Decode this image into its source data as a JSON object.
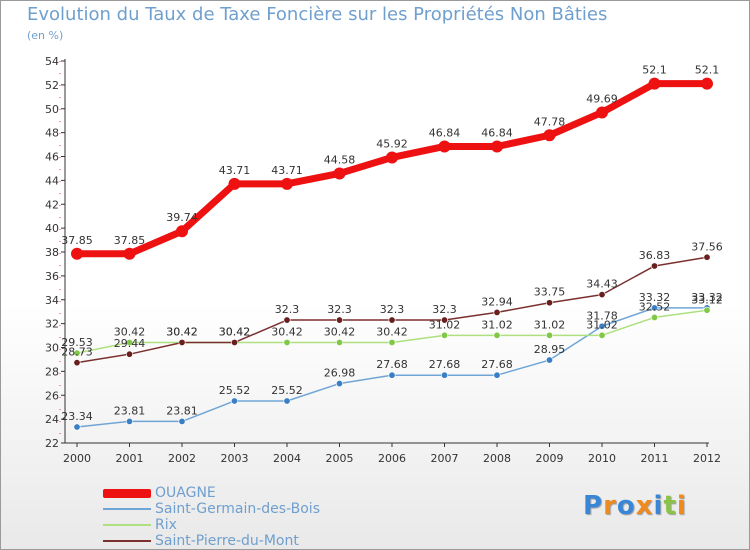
{
  "chart_data": {
    "type": "line",
    "title": "Evolution du Taux de Taxe Foncière sur les Propriétés Non Bâties",
    "subtitle": "(en %)",
    "xlabel": "",
    "ylabel": "",
    "ylim": [
      22,
      54
    ],
    "yticks": [
      22,
      24,
      26,
      28,
      30,
      32,
      34,
      36,
      38,
      40,
      42,
      44,
      46,
      48,
      50,
      52,
      54
    ],
    "grid": false,
    "legend_position": "bottom-left",
    "categories": [
      "2000",
      "2001",
      "2002",
      "2003",
      "2004",
      "2005",
      "2006",
      "2007",
      "2008",
      "2009",
      "2010",
      "2011",
      "2012"
    ],
    "series": [
      {
        "name": "OUAGNE",
        "color": "#ee1111",
        "values": [
          37.85,
          37.85,
          39.74,
          43.71,
          43.71,
          44.58,
          45.92,
          46.84,
          46.84,
          47.78,
          49.69,
          52.1,
          52.1
        ],
        "labels": [
          "37.85",
          "37.85",
          "39.74",
          "43.71",
          "43.71",
          "44.58",
          "45.92",
          "46.84",
          "46.84",
          "47.78",
          "49.69",
          "52.1",
          "52.1"
        ]
      },
      {
        "name": "Saint-Germain-des-Bois",
        "color": "#6fa5d6",
        "marker_color": "#3a7fc4",
        "values": [
          23.34,
          23.81,
          23.81,
          25.52,
          25.52,
          26.98,
          27.68,
          27.68,
          27.68,
          28.95,
          31.78,
          33.32,
          33.32
        ],
        "labels": [
          "23.34",
          "23.81",
          "23.81",
          "25.52",
          "25.52",
          "26.98",
          "27.68",
          "27.68",
          "27.68",
          "28.95",
          "31.78",
          "33.32",
          "33.32"
        ]
      },
      {
        "name": "Rix",
        "color": "#aee07f",
        "marker_color": "#80c847",
        "values": [
          29.53,
          30.42,
          30.42,
          30.42,
          30.42,
          30.42,
          30.42,
          31.02,
          31.02,
          31.02,
          31.02,
          32.52,
          33.12
        ],
        "labels": [
          "29.53",
          "30.42",
          "30.42",
          "30.42",
          "30.42",
          "30.42",
          "30.42",
          "31.02",
          "31.02",
          "31.02",
          "31.02",
          "32.52",
          "33.12"
        ]
      },
      {
        "name": "Saint-Pierre-du-Mont",
        "color": "#7b3030",
        "marker_color": "#6a1f1f",
        "values": [
          28.73,
          29.44,
          30.42,
          30.42,
          32.3,
          32.3,
          32.3,
          32.3,
          32.94,
          33.75,
          34.43,
          36.83,
          37.56
        ],
        "labels": [
          "28.73",
          "29.44",
          "30.42",
          "30.42",
          "32.3",
          "32.3",
          "32.3",
          "32.3",
          "32.94",
          "33.75",
          "34.43",
          "36.83",
          "37.56"
        ]
      }
    ]
  },
  "branding": {
    "logo_text": "Proxiti"
  }
}
